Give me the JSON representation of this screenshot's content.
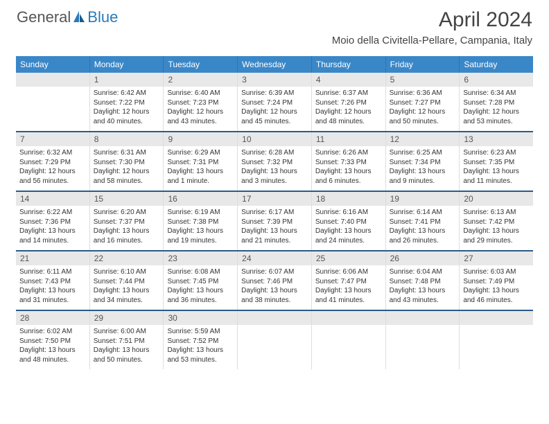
{
  "logo": {
    "general": "General",
    "blue": "Blue"
  },
  "header": {
    "month_title": "April 2024",
    "location": "Moio della Civitella-Pellare, Campania, Italy"
  },
  "colors": {
    "header_bg": "#3a87c8",
    "header_text": "#ffffff",
    "day_number_bg": "#e8e8e8",
    "week_divider": "#2a5a8a",
    "logo_blue": "#2a7ab8",
    "text": "#333333"
  },
  "weekdays": [
    "Sunday",
    "Monday",
    "Tuesday",
    "Wednesday",
    "Thursday",
    "Friday",
    "Saturday"
  ],
  "weeks": [
    [
      {
        "day": "",
        "sunrise": "",
        "sunset": "",
        "daylight": ""
      },
      {
        "day": "1",
        "sunrise": "Sunrise: 6:42 AM",
        "sunset": "Sunset: 7:22 PM",
        "daylight": "Daylight: 12 hours and 40 minutes."
      },
      {
        "day": "2",
        "sunrise": "Sunrise: 6:40 AM",
        "sunset": "Sunset: 7:23 PM",
        "daylight": "Daylight: 12 hours and 43 minutes."
      },
      {
        "day": "3",
        "sunrise": "Sunrise: 6:39 AM",
        "sunset": "Sunset: 7:24 PM",
        "daylight": "Daylight: 12 hours and 45 minutes."
      },
      {
        "day": "4",
        "sunrise": "Sunrise: 6:37 AM",
        "sunset": "Sunset: 7:26 PM",
        "daylight": "Daylight: 12 hours and 48 minutes."
      },
      {
        "day": "5",
        "sunrise": "Sunrise: 6:36 AM",
        "sunset": "Sunset: 7:27 PM",
        "daylight": "Daylight: 12 hours and 50 minutes."
      },
      {
        "day": "6",
        "sunrise": "Sunrise: 6:34 AM",
        "sunset": "Sunset: 7:28 PM",
        "daylight": "Daylight: 12 hours and 53 minutes."
      }
    ],
    [
      {
        "day": "7",
        "sunrise": "Sunrise: 6:32 AM",
        "sunset": "Sunset: 7:29 PM",
        "daylight": "Daylight: 12 hours and 56 minutes."
      },
      {
        "day": "8",
        "sunrise": "Sunrise: 6:31 AM",
        "sunset": "Sunset: 7:30 PM",
        "daylight": "Daylight: 12 hours and 58 minutes."
      },
      {
        "day": "9",
        "sunrise": "Sunrise: 6:29 AM",
        "sunset": "Sunset: 7:31 PM",
        "daylight": "Daylight: 13 hours and 1 minute."
      },
      {
        "day": "10",
        "sunrise": "Sunrise: 6:28 AM",
        "sunset": "Sunset: 7:32 PM",
        "daylight": "Daylight: 13 hours and 3 minutes."
      },
      {
        "day": "11",
        "sunrise": "Sunrise: 6:26 AM",
        "sunset": "Sunset: 7:33 PM",
        "daylight": "Daylight: 13 hours and 6 minutes."
      },
      {
        "day": "12",
        "sunrise": "Sunrise: 6:25 AM",
        "sunset": "Sunset: 7:34 PM",
        "daylight": "Daylight: 13 hours and 9 minutes."
      },
      {
        "day": "13",
        "sunrise": "Sunrise: 6:23 AM",
        "sunset": "Sunset: 7:35 PM",
        "daylight": "Daylight: 13 hours and 11 minutes."
      }
    ],
    [
      {
        "day": "14",
        "sunrise": "Sunrise: 6:22 AM",
        "sunset": "Sunset: 7:36 PM",
        "daylight": "Daylight: 13 hours and 14 minutes."
      },
      {
        "day": "15",
        "sunrise": "Sunrise: 6:20 AM",
        "sunset": "Sunset: 7:37 PM",
        "daylight": "Daylight: 13 hours and 16 minutes."
      },
      {
        "day": "16",
        "sunrise": "Sunrise: 6:19 AM",
        "sunset": "Sunset: 7:38 PM",
        "daylight": "Daylight: 13 hours and 19 minutes."
      },
      {
        "day": "17",
        "sunrise": "Sunrise: 6:17 AM",
        "sunset": "Sunset: 7:39 PM",
        "daylight": "Daylight: 13 hours and 21 minutes."
      },
      {
        "day": "18",
        "sunrise": "Sunrise: 6:16 AM",
        "sunset": "Sunset: 7:40 PM",
        "daylight": "Daylight: 13 hours and 24 minutes."
      },
      {
        "day": "19",
        "sunrise": "Sunrise: 6:14 AM",
        "sunset": "Sunset: 7:41 PM",
        "daylight": "Daylight: 13 hours and 26 minutes."
      },
      {
        "day": "20",
        "sunrise": "Sunrise: 6:13 AM",
        "sunset": "Sunset: 7:42 PM",
        "daylight": "Daylight: 13 hours and 29 minutes."
      }
    ],
    [
      {
        "day": "21",
        "sunrise": "Sunrise: 6:11 AM",
        "sunset": "Sunset: 7:43 PM",
        "daylight": "Daylight: 13 hours and 31 minutes."
      },
      {
        "day": "22",
        "sunrise": "Sunrise: 6:10 AM",
        "sunset": "Sunset: 7:44 PM",
        "daylight": "Daylight: 13 hours and 34 minutes."
      },
      {
        "day": "23",
        "sunrise": "Sunrise: 6:08 AM",
        "sunset": "Sunset: 7:45 PM",
        "daylight": "Daylight: 13 hours and 36 minutes."
      },
      {
        "day": "24",
        "sunrise": "Sunrise: 6:07 AM",
        "sunset": "Sunset: 7:46 PM",
        "daylight": "Daylight: 13 hours and 38 minutes."
      },
      {
        "day": "25",
        "sunrise": "Sunrise: 6:06 AM",
        "sunset": "Sunset: 7:47 PM",
        "daylight": "Daylight: 13 hours and 41 minutes."
      },
      {
        "day": "26",
        "sunrise": "Sunrise: 6:04 AM",
        "sunset": "Sunset: 7:48 PM",
        "daylight": "Daylight: 13 hours and 43 minutes."
      },
      {
        "day": "27",
        "sunrise": "Sunrise: 6:03 AM",
        "sunset": "Sunset: 7:49 PM",
        "daylight": "Daylight: 13 hours and 46 minutes."
      }
    ],
    [
      {
        "day": "28",
        "sunrise": "Sunrise: 6:02 AM",
        "sunset": "Sunset: 7:50 PM",
        "daylight": "Daylight: 13 hours and 48 minutes."
      },
      {
        "day": "29",
        "sunrise": "Sunrise: 6:00 AM",
        "sunset": "Sunset: 7:51 PM",
        "daylight": "Daylight: 13 hours and 50 minutes."
      },
      {
        "day": "30",
        "sunrise": "Sunrise: 5:59 AM",
        "sunset": "Sunset: 7:52 PM",
        "daylight": "Daylight: 13 hours and 53 minutes."
      },
      {
        "day": "",
        "sunrise": "",
        "sunset": "",
        "daylight": ""
      },
      {
        "day": "",
        "sunrise": "",
        "sunset": "",
        "daylight": ""
      },
      {
        "day": "",
        "sunrise": "",
        "sunset": "",
        "daylight": ""
      },
      {
        "day": "",
        "sunrise": "",
        "sunset": "",
        "daylight": ""
      }
    ]
  ]
}
